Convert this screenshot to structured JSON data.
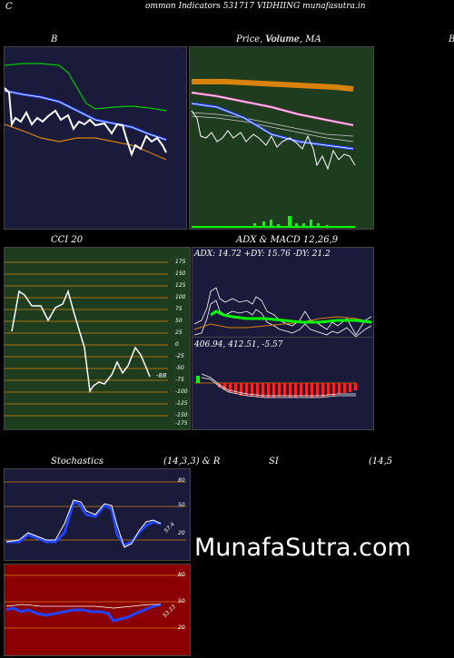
{
  "header": {
    "c_label": "C",
    "title": "ommon  Indicators 531717 VIDHIING munafasutra.in"
  },
  "top_row": {
    "b_label": "B",
    "price_label": "Price,  Volume, MA",
    "price_overlay": "Volume",
    "right_label": "B"
  },
  "middle_row": {
    "cci_label": "CCI 20",
    "cci_ticks": [
      "175",
      "150",
      "125",
      "100",
      "75",
      "50",
      "25",
      "0",
      "-25",
      "-50",
      "-75",
      "-100",
      "-125",
      "-150",
      "-175"
    ],
    "cci_value": "-88",
    "adx_label": "ADX  & MACD 12,26,9",
    "adx_values": "ADX: 14.72  +DY: 15.76  -DY: 21.2",
    "macd_values": "406.94,  412.51,  -5.57"
  },
  "bottom_row": {
    "stoch_label": "Stochastics",
    "stoch_params": "(14,3,3) & R",
    "si_label": "SI",
    "rsi_params": "(14,5",
    "stoch_ticks": [
      "80",
      "50",
      "20"
    ],
    "stoch_value": "57.4",
    "rsi_ticks": [
      "80",
      "50",
      "20"
    ],
    "rsi_value": "53.13"
  },
  "watermark": "MunafaSutra.com",
  "colors": {
    "navy": "#1a1a3a",
    "green_panel": "#1e3d1e",
    "rsi_red": "#8b0000",
    "orange": "#d9820a",
    "volume_green": "#00ff00"
  }
}
